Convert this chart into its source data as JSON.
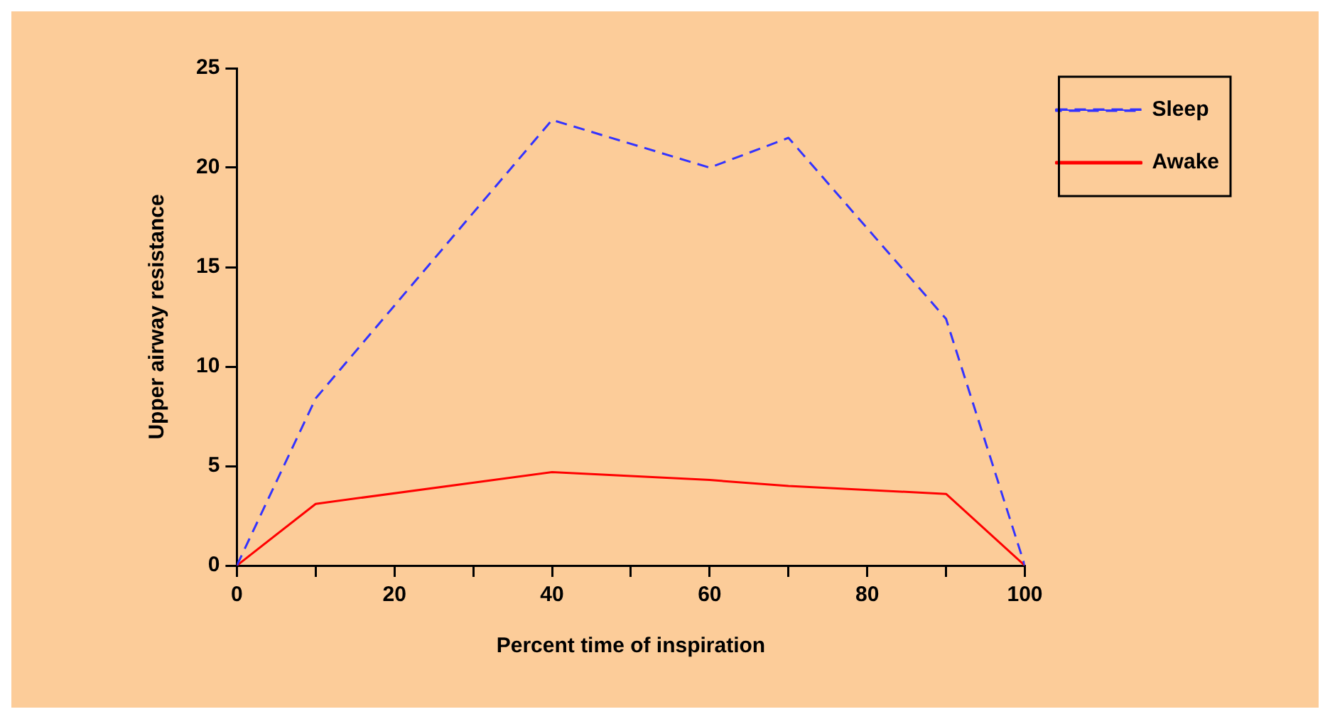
{
  "chart_data": {
    "type": "line",
    "xlabel": "Percent time of inspiration",
    "ylabel": "Upper airway resistance",
    "xlim": [
      0,
      100
    ],
    "xticks": [
      0,
      {
        "value": 10,
        "label": null
      },
      20,
      {
        "value": 30,
        "label": null
      },
      40,
      {
        "value": 50,
        "label": null
      },
      60,
      {
        "value": 70,
        "label": null
      },
      80,
      {
        "value": 90,
        "label": null
      },
      100
    ],
    "ylim": [
      0,
      25
    ],
    "yticks": [
      0,
      5,
      10,
      15,
      20,
      25
    ],
    "grid": false,
    "legend": "top right",
    "marker": "none",
    "series": [
      {
        "name": "Sleep",
        "color": "#3333ff",
        "line_style": "dashed",
        "x": [
          0,
          10,
          40,
          60,
          70,
          90,
          100
        ],
        "values": [
          0,
          8.4,
          22.4,
          20,
          21.5,
          12.4,
          0
        ]
      },
      {
        "name": "Awake",
        "color": "#ff0000",
        "line_style": "solid",
        "x": [
          0,
          10,
          40,
          60,
          70,
          90,
          100
        ],
        "values": [
          0,
          3.1,
          4.7,
          4.3,
          4.0,
          3.6,
          0
        ]
      }
    ]
  }
}
